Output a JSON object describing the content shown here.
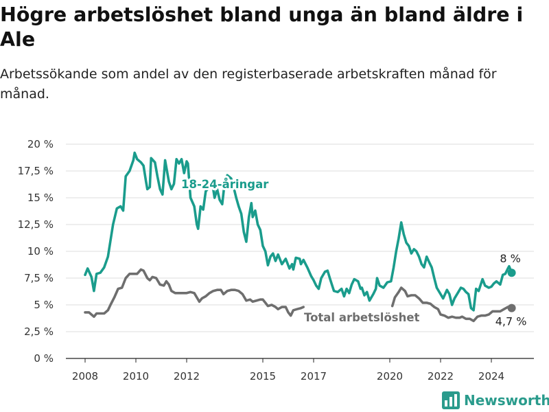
{
  "header": {
    "title": "Högre arbetslöshet bland unga än bland äldre i Ale",
    "subtitle": "Arbetssökande som andel av den registerbaserade arbetskraften månad för månad."
  },
  "brand": {
    "name": "Newsworthy",
    "icon": "bar-chart-logo-icon",
    "color": "#2a9b8c"
  },
  "chart_data": {
    "type": "line",
    "ylim": [
      0,
      20
    ],
    "y_ticks": [
      {
        "value": 0,
        "label": "0 %"
      },
      {
        "value": 2.5,
        "label": "2,5 %"
      },
      {
        "value": 5,
        "label": "5 %"
      },
      {
        "value": 7.5,
        "label": "7,5 %"
      },
      {
        "value": 10,
        "label": "10 %"
      },
      {
        "value": 12.5,
        "label": "12,5 %"
      },
      {
        "value": 15,
        "label": "15 %"
      },
      {
        "value": 17.5,
        "label": "17,5 %"
      },
      {
        "value": 20,
        "label": "20 %"
      }
    ],
    "xlim": [
      2008.0,
      2025.0
    ],
    "x_ticks": [
      {
        "value": 2008.0,
        "label": "2008"
      },
      {
        "value": 2010.0,
        "label": "2010"
      },
      {
        "value": 2012.0,
        "label": "2012"
      },
      {
        "value": 2015.0,
        "label": "2015"
      },
      {
        "value": 2017.0,
        "label": "2017"
      },
      {
        "value": 2020.0,
        "label": "2020"
      },
      {
        "value": 2022.0,
        "label": "2022"
      },
      {
        "value": 2024.0,
        "label": "2024"
      }
    ],
    "grid": true,
    "series": [
      {
        "name": "18-24-åringar",
        "color": "#1a9c8c",
        "end_label": "8 %",
        "points": [
          [
            2008.0,
            7.8
          ],
          [
            2008.1,
            8.4
          ],
          [
            2008.25,
            7.6
          ],
          [
            2008.35,
            6.3
          ],
          [
            2008.45,
            7.9
          ],
          [
            2008.6,
            8.0
          ],
          [
            2008.75,
            8.5
          ],
          [
            2008.9,
            9.5
          ],
          [
            2009.0,
            11.0
          ],
          [
            2009.1,
            12.5
          ],
          [
            2009.25,
            14.0
          ],
          [
            2009.4,
            14.2
          ],
          [
            2009.5,
            13.8
          ],
          [
            2009.6,
            17.0
          ],
          [
            2009.75,
            17.5
          ],
          [
            2009.9,
            18.5
          ],
          [
            2009.95,
            19.2
          ],
          [
            2010.05,
            18.6
          ],
          [
            2010.2,
            18.3
          ],
          [
            2010.3,
            18.0
          ],
          [
            2010.4,
            16.5
          ],
          [
            2010.45,
            15.8
          ],
          [
            2010.55,
            16.0
          ],
          [
            2010.6,
            18.7
          ],
          [
            2010.75,
            18.3
          ],
          [
            2010.85,
            17.0
          ],
          [
            2010.95,
            15.8
          ],
          [
            2011.05,
            15.3
          ],
          [
            2011.15,
            18.5
          ],
          [
            2011.3,
            16.5
          ],
          [
            2011.4,
            15.8
          ],
          [
            2011.5,
            16.3
          ],
          [
            2011.6,
            18.6
          ],
          [
            2011.7,
            18.2
          ],
          [
            2011.8,
            18.6
          ],
          [
            2011.9,
            17.3
          ],
          [
            2012.0,
            18.4
          ],
          [
            2012.05,
            18.2
          ],
          [
            2012.15,
            15.0
          ],
          [
            2012.3,
            14.2
          ],
          [
            2012.4,
            12.5
          ],
          [
            2012.45,
            12.1
          ],
          [
            2012.55,
            14.2
          ],
          [
            2012.65,
            13.9
          ],
          [
            2012.75,
            15.6
          ],
          [
            2012.9,
            16.0
          ],
          [
            2013.0,
            16.5
          ],
          [
            2013.1,
            15.0
          ],
          [
            2013.2,
            15.8
          ],
          [
            2013.3,
            14.8
          ],
          [
            2013.4,
            14.4
          ],
          [
            2013.5,
            16.5
          ],
          [
            2013.6,
            17.1
          ],
          [
            2013.75,
            16.8
          ],
          [
            2013.85,
            16.0
          ],
          [
            2013.95,
            15.0
          ],
          [
            2014.05,
            14.2
          ],
          [
            2014.15,
            13.5
          ],
          [
            2014.25,
            11.8
          ],
          [
            2014.35,
            10.9
          ],
          [
            2014.45,
            13.2
          ],
          [
            2014.55,
            14.5
          ],
          [
            2014.6,
            13.2
          ],
          [
            2014.7,
            13.8
          ],
          [
            2014.8,
            12.5
          ],
          [
            2014.9,
            12.0
          ],
          [
            2015.0,
            10.5
          ],
          [
            2015.1,
            10.0
          ],
          [
            2015.2,
            8.7
          ],
          [
            2015.3,
            9.5
          ],
          [
            2015.4,
            9.8
          ],
          [
            2015.5,
            9.1
          ],
          [
            2015.6,
            9.7
          ],
          [
            2015.75,
            8.8
          ],
          [
            2015.9,
            9.3
          ],
          [
            2016.05,
            8.4
          ],
          [
            2016.15,
            8.8
          ],
          [
            2016.2,
            8.3
          ],
          [
            2016.3,
            9.4
          ],
          [
            2016.45,
            9.3
          ],
          [
            2016.5,
            8.8
          ],
          [
            2016.6,
            9.2
          ],
          [
            2016.75,
            8.5
          ],
          [
            2016.9,
            7.7
          ],
          [
            2017.0,
            7.3
          ],
          [
            2017.1,
            6.8
          ],
          [
            2017.2,
            6.5
          ],
          [
            2017.3,
            7.5
          ],
          [
            2017.45,
            8.1
          ],
          [
            2017.55,
            8.2
          ],
          [
            2017.65,
            7.4
          ],
          [
            2017.8,
            6.3
          ],
          [
            2017.95,
            6.2
          ],
          [
            2018.1,
            6.5
          ],
          [
            2018.2,
            5.8
          ],
          [
            2018.3,
            6.5
          ],
          [
            2018.4,
            6.1
          ],
          [
            2018.5,
            6.9
          ],
          [
            2018.6,
            7.4
          ],
          [
            2018.75,
            7.2
          ],
          [
            2018.85,
            6.5
          ],
          [
            2018.9,
            6.6
          ],
          [
            2019.0,
            5.9
          ],
          [
            2019.1,
            6.2
          ],
          [
            2019.2,
            5.4
          ],
          [
            2019.35,
            6.0
          ],
          [
            2019.45,
            6.5
          ],
          [
            2019.5,
            7.5
          ],
          [
            2019.6,
            6.8
          ],
          [
            2019.75,
            6.6
          ],
          [
            2019.9,
            7.1
          ],
          [
            2020.05,
            7.2
          ],
          [
            2020.15,
            8.5
          ],
          [
            2020.25,
            10.0
          ],
          [
            2020.35,
            11.2
          ],
          [
            2020.45,
            12.7
          ],
          [
            2020.55,
            11.6
          ],
          [
            2020.65,
            10.8
          ],
          [
            2020.75,
            10.5
          ],
          [
            2020.85,
            9.8
          ],
          [
            2020.95,
            10.2
          ],
          [
            2021.05,
            10.0
          ],
          [
            2021.15,
            9.5
          ],
          [
            2021.25,
            8.8
          ],
          [
            2021.35,
            8.5
          ],
          [
            2021.45,
            9.5
          ],
          [
            2021.55,
            9.0
          ],
          [
            2021.65,
            8.5
          ],
          [
            2021.75,
            7.5
          ],
          [
            2021.85,
            6.6
          ],
          [
            2021.95,
            6.2
          ],
          [
            2022.1,
            5.6
          ],
          [
            2022.25,
            6.4
          ],
          [
            2022.35,
            6.0
          ],
          [
            2022.45,
            5.0
          ],
          [
            2022.55,
            5.6
          ],
          [
            2022.7,
            6.2
          ],
          [
            2022.8,
            6.6
          ],
          [
            2022.9,
            6.5
          ],
          [
            2023.0,
            6.2
          ],
          [
            2023.1,
            6.0
          ],
          [
            2023.2,
            4.7
          ],
          [
            2023.3,
            4.5
          ],
          [
            2023.4,
            6.5
          ],
          [
            2023.5,
            6.3
          ],
          [
            2023.65,
            7.4
          ],
          [
            2023.75,
            6.8
          ],
          [
            2023.9,
            6.6
          ],
          [
            2024.0,
            6.7
          ],
          [
            2024.1,
            7.0
          ],
          [
            2024.2,
            7.2
          ],
          [
            2024.3,
            7.0
          ],
          [
            2024.35,
            6.9
          ],
          [
            2024.45,
            7.8
          ],
          [
            2024.55,
            7.9
          ],
          [
            2024.65,
            8.4
          ],
          [
            2024.7,
            8.6
          ],
          [
            2024.8,
            8.0
          ]
        ]
      },
      {
        "name": "Total arbetslöshet",
        "color": "#6e6e6e",
        "end_label": "4,7 %",
        "points": [
          [
            2008.0,
            4.3
          ],
          [
            2008.15,
            4.3
          ],
          [
            2008.3,
            4.0
          ],
          [
            2008.35,
            3.9
          ],
          [
            2008.45,
            4.2
          ],
          [
            2008.6,
            4.2
          ],
          [
            2008.75,
            4.2
          ],
          [
            2008.9,
            4.5
          ],
          [
            2009.0,
            5.0
          ],
          [
            2009.15,
            5.7
          ],
          [
            2009.3,
            6.5
          ],
          [
            2009.45,
            6.6
          ],
          [
            2009.6,
            7.5
          ],
          [
            2009.75,
            7.9
          ],
          [
            2009.9,
            7.9
          ],
          [
            2010.05,
            7.9
          ],
          [
            2010.2,
            8.3
          ],
          [
            2010.3,
            8.2
          ],
          [
            2010.45,
            7.5
          ],
          [
            2010.55,
            7.3
          ],
          [
            2010.65,
            7.6
          ],
          [
            2010.8,
            7.5
          ],
          [
            2010.95,
            6.9
          ],
          [
            2011.1,
            6.8
          ],
          [
            2011.2,
            7.2
          ],
          [
            2011.3,
            6.9
          ],
          [
            2011.4,
            6.3
          ],
          [
            2011.55,
            6.1
          ],
          [
            2011.7,
            6.1
          ],
          [
            2011.85,
            6.1
          ],
          [
            2012.0,
            6.1
          ],
          [
            2012.15,
            6.2
          ],
          [
            2012.3,
            6.1
          ],
          [
            2012.4,
            5.7
          ],
          [
            2012.5,
            5.3
          ],
          [
            2012.6,
            5.6
          ],
          [
            2012.75,
            5.8
          ],
          [
            2012.9,
            6.1
          ],
          [
            2013.05,
            6.3
          ],
          [
            2013.2,
            6.4
          ],
          [
            2013.35,
            6.4
          ],
          [
            2013.45,
            6.0
          ],
          [
            2013.6,
            6.3
          ],
          [
            2013.75,
            6.4
          ],
          [
            2013.9,
            6.4
          ],
          [
            2014.05,
            6.3
          ],
          [
            2014.2,
            6.0
          ],
          [
            2014.35,
            5.4
          ],
          [
            2014.5,
            5.5
          ],
          [
            2014.6,
            5.3
          ],
          [
            2014.75,
            5.4
          ],
          [
            2014.9,
            5.5
          ],
          [
            2015.0,
            5.5
          ],
          [
            2015.1,
            5.2
          ],
          [
            2015.2,
            4.9
          ],
          [
            2015.35,
            5.0
          ],
          [
            2015.5,
            4.8
          ],
          [
            2015.6,
            4.6
          ],
          [
            2015.75,
            4.8
          ],
          [
            2015.9,
            4.8
          ],
          [
            2016.0,
            4.3
          ],
          [
            2016.1,
            4.0
          ],
          [
            2016.2,
            4.5
          ],
          [
            2016.35,
            4.6
          ],
          [
            2016.5,
            4.7
          ],
          [
            2016.6,
            4.8
          ]
        ],
        "points2": [
          [
            2020.1,
            4.9
          ],
          [
            2020.2,
            5.7
          ],
          [
            2020.35,
            6.2
          ],
          [
            2020.45,
            6.6
          ],
          [
            2020.6,
            6.3
          ],
          [
            2020.7,
            5.8
          ],
          [
            2020.85,
            5.9
          ],
          [
            2021.0,
            5.9
          ],
          [
            2021.15,
            5.6
          ],
          [
            2021.3,
            5.2
          ],
          [
            2021.45,
            5.2
          ],
          [
            2021.6,
            5.1
          ],
          [
            2021.75,
            4.8
          ],
          [
            2021.9,
            4.6
          ],
          [
            2022.0,
            4.1
          ],
          [
            2022.15,
            4.0
          ],
          [
            2022.3,
            3.8
          ],
          [
            2022.45,
            3.9
          ],
          [
            2022.6,
            3.8
          ],
          [
            2022.75,
            3.8
          ],
          [
            2022.85,
            3.9
          ],
          [
            2023.0,
            3.7
          ],
          [
            2023.15,
            3.7
          ],
          [
            2023.3,
            3.5
          ],
          [
            2023.45,
            3.9
          ],
          [
            2023.6,
            4.0
          ],
          [
            2023.75,
            4.0
          ],
          [
            2023.9,
            4.1
          ],
          [
            2024.05,
            4.4
          ],
          [
            2024.2,
            4.4
          ],
          [
            2024.35,
            4.4
          ],
          [
            2024.5,
            4.6
          ],
          [
            2024.65,
            4.8
          ],
          [
            2024.75,
            4.6
          ],
          [
            2024.8,
            4.7
          ]
        ]
      }
    ]
  }
}
